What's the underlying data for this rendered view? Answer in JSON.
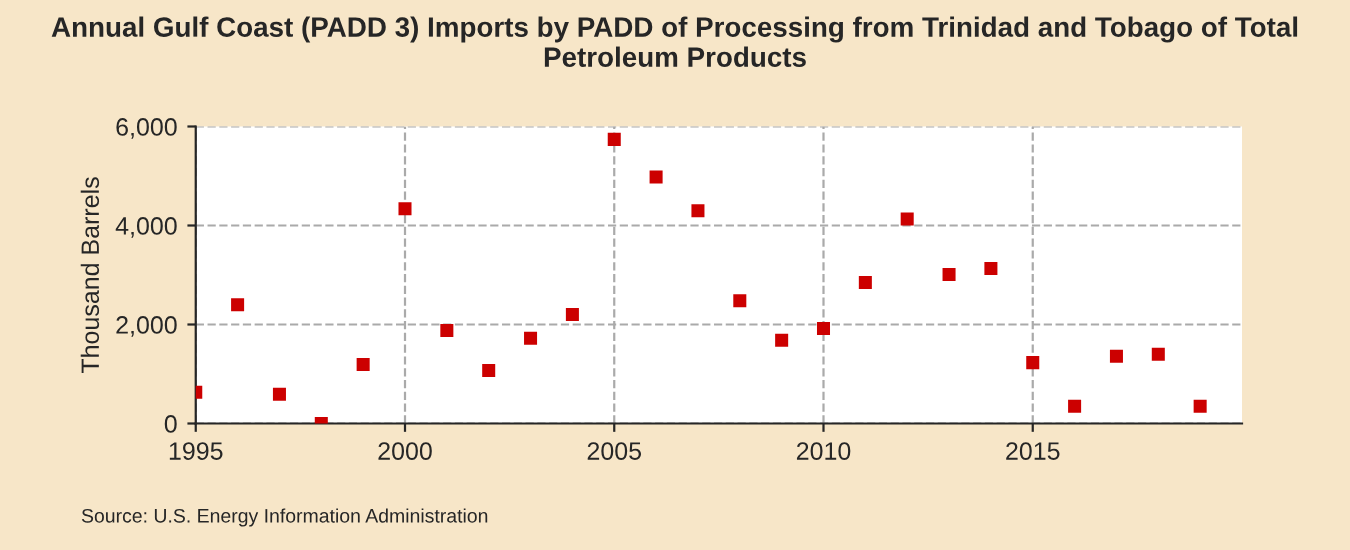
{
  "chart_data": {
    "type": "scatter",
    "title": "Annual Gulf Coast (PADD 3) Imports by PADD of Processing from Trinidad and Tobago of Total Petroleum Products",
    "ylabel": "Thousand Barrels",
    "x": [
      1995,
      1996,
      1997,
      1998,
      1999,
      2000,
      2001,
      2002,
      2003,
      2004,
      2005,
      2006,
      2007,
      2008,
      2009,
      2010,
      2011,
      2012,
      2013,
      2014,
      2015,
      2016,
      2017,
      2018,
      2019
    ],
    "series": [
      {
        "color": "#cc0000",
        "values": [
          630,
          2400,
          590,
          0,
          1190,
          4340,
          1880,
          1070,
          1720,
          2200,
          5740,
          4980,
          4300,
          2480,
          1680,
          1920,
          2850,
          4130,
          3010,
          3130,
          1230,
          350,
          1360,
          1400,
          350
        ]
      }
    ],
    "xlim": [
      1995,
      2020
    ],
    "xticks": [
      1995,
      2000,
      2005,
      2010,
      2015
    ],
    "ylim": [
      0,
      6000
    ],
    "yticks": [
      {
        "value": 0,
        "label": "0"
      },
      {
        "value": 2000,
        "label": "2,000"
      },
      {
        "value": 4000,
        "label": "4,000"
      },
      {
        "value": 6000,
        "label": "6,000"
      }
    ],
    "grid": true,
    "marker": "square",
    "annotations": [
      "Source: U.S. Energy Information Administration"
    ]
  }
}
